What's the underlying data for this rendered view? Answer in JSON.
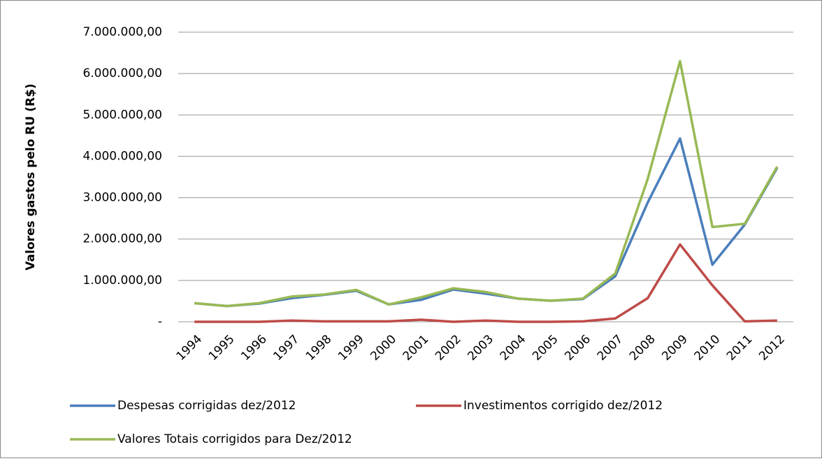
{
  "chart_data": {
    "type": "line",
    "y_label": "Valores gastos pelo RU (R$)",
    "categories": [
      "1994",
      "1995",
      "1996",
      "1997",
      "1998",
      "1999",
      "2000",
      "2001",
      "2002",
      "2003",
      "2004",
      "2005",
      "2006",
      "2007",
      "2008",
      "2009",
      "2010",
      "2011",
      "2012"
    ],
    "series": [
      {
        "name": "Despesas corrigidas dez/2012",
        "color": "#4a7ebb",
        "values": [
          450000,
          380000,
          440000,
          570000,
          650000,
          750000,
          420000,
          530000,
          780000,
          680000,
          560000,
          510000,
          550000,
          1100000,
          2880000,
          4430000,
          1380000,
          2350000,
          3720000
        ]
      },
      {
        "name": "Investimentos corrigido dez/2012",
        "color": "#be4b48",
        "values": [
          0,
          0,
          0,
          30000,
          10000,
          10000,
          10000,
          50000,
          0,
          30000,
          0,
          0,
          10000,
          80000,
          570000,
          1870000,
          880000,
          10000,
          30000
        ]
      },
      {
        "name": "Valores Totais corrigidos para Dez/2012",
        "color": "#98b954",
        "values": [
          450000,
          380000,
          450000,
          610000,
          660000,
          770000,
          420000,
          590000,
          810000,
          720000,
          560000,
          510000,
          560000,
          1170000,
          3450000,
          6300000,
          2290000,
          2370000,
          3750000
        ]
      }
    ],
    "ylim": [
      0,
      7000000
    ],
    "yticks": [
      {
        "value": 0,
        "label": "-"
      },
      {
        "value": 1000000,
        "label": "1.000.000,00"
      },
      {
        "value": 2000000,
        "label": "2.000.000,00"
      },
      {
        "value": 3000000,
        "label": "3.000.000,00"
      },
      {
        "value": 4000000,
        "label": "4.000.000,00"
      },
      {
        "value": 5000000,
        "label": "5.000.000,00"
      },
      {
        "value": 6000000,
        "label": "6.000.000,00"
      },
      {
        "value": 7000000,
        "label": "7.000.000,00"
      }
    ],
    "grid": true,
    "legend": "bottom"
  }
}
